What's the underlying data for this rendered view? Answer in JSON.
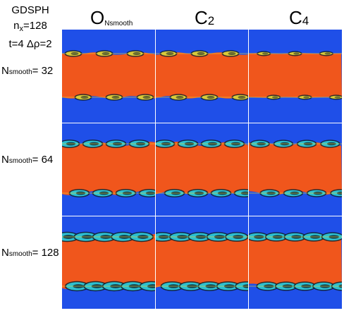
{
  "info": {
    "line1": "GDSPH",
    "line2_main": "n",
    "line2_sub": "x",
    "line2_rest": "=128",
    "line3": "t=4 Δρ=2"
  },
  "columns": [
    {
      "main": "O",
      "sub": "Nsmooth"
    },
    {
      "main": "C",
      "sub": "2"
    },
    {
      "main": "C",
      "sub": "4"
    }
  ],
  "rows": [
    {
      "main": "N",
      "sub": "smooth",
      "rest": "= 32"
    },
    {
      "main": "N",
      "sub": "smooth",
      "rest": "= 64"
    },
    {
      "main": "N",
      "sub": "smooth",
      "rest": "= 128"
    }
  ],
  "colors": {
    "background_blue": "#1f4fe8",
    "dense_orange": "#f0561c",
    "interface_yellow": "#e8d83a",
    "vortex_cyan": "#2fd0e0",
    "vortex_dark": "#10202a"
  }
}
